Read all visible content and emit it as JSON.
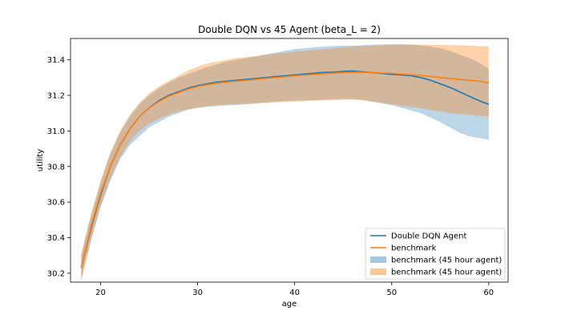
{
  "chart_data": {
    "type": "line",
    "title": "Double DQN vs 45 Agent (beta_L = 2)",
    "xlabel": "age",
    "ylabel": "utility",
    "xlim": [
      16.9,
      62.0
    ],
    "ylim": [
      30.15,
      31.52
    ],
    "xticks": [
      20,
      30,
      40,
      50,
      60
    ],
    "yticks": [
      30.2,
      30.4,
      30.6,
      30.8,
      31.0,
      31.2,
      31.4
    ],
    "grid": false,
    "legend_position": "lower right",
    "x": [
      18,
      19,
      20,
      21,
      22,
      23,
      24,
      25,
      26,
      27,
      28,
      29,
      30,
      31,
      32,
      33,
      34,
      35,
      36,
      37,
      38,
      39,
      40,
      41,
      42,
      43,
      44,
      45,
      46,
      47,
      48,
      49,
      50,
      51,
      52,
      53,
      54,
      55,
      56,
      57,
      58,
      59,
      60
    ],
    "series": [
      {
        "name": "Double DQN Agent",
        "kind": "line",
        "color": "#1f77b4",
        "values": [
          30.23,
          30.45,
          30.64,
          30.8,
          30.92,
          31.01,
          31.08,
          31.13,
          31.17,
          31.2,
          31.22,
          31.24,
          31.255,
          31.265,
          31.275,
          31.28,
          31.285,
          31.29,
          31.295,
          31.3,
          31.305,
          31.31,
          31.315,
          31.32,
          31.325,
          31.33,
          31.33,
          31.335,
          31.337,
          31.333,
          31.328,
          31.323,
          31.318,
          31.315,
          31.31,
          31.3,
          31.285,
          31.265,
          31.245,
          31.22,
          31.195,
          31.17,
          31.15
        ]
      },
      {
        "name": "benchmark",
        "kind": "line",
        "color": "#ff7f0e",
        "values": [
          30.23,
          30.46,
          30.65,
          30.8,
          30.92,
          31.01,
          31.08,
          31.13,
          31.165,
          31.195,
          31.215,
          31.235,
          31.25,
          31.26,
          31.268,
          31.275,
          31.28,
          31.285,
          31.29,
          31.295,
          31.3,
          31.305,
          31.31,
          31.314,
          31.318,
          31.322,
          31.325,
          31.328,
          31.33,
          31.33,
          31.328,
          31.326,
          31.324,
          31.32,
          31.316,
          31.312,
          31.307,
          31.3,
          31.295,
          31.29,
          31.285,
          31.28,
          31.27
        ]
      },
      {
        "name": "benchmark (45 hour agent)",
        "kind": "band",
        "color": "#1f77b4",
        "opacity": 0.3,
        "lower": [
          30.16,
          30.38,
          30.57,
          30.72,
          30.84,
          30.92,
          30.97,
          31.02,
          31.05,
          31.08,
          31.1,
          31.12,
          31.13,
          31.135,
          31.14,
          31.143,
          31.146,
          31.15,
          31.155,
          31.16,
          31.165,
          31.168,
          31.17,
          31.172,
          31.174,
          31.176,
          31.178,
          31.18,
          31.18,
          31.175,
          31.165,
          31.155,
          31.145,
          31.13,
          31.115,
          31.1,
          31.075,
          31.05,
          31.02,
          30.99,
          30.97,
          30.96,
          30.95
        ],
        "upper": [
          30.3,
          30.52,
          30.71,
          30.87,
          30.99,
          31.08,
          31.15,
          31.2,
          31.24,
          31.27,
          31.3,
          31.32,
          31.34,
          31.36,
          31.375,
          31.39,
          31.4,
          31.41,
          31.42,
          31.43,
          31.44,
          31.45,
          31.46,
          31.465,
          31.47,
          31.475,
          31.478,
          31.48,
          31.48,
          31.482,
          31.485,
          31.487,
          31.488,
          31.488,
          31.485,
          31.48,
          31.475,
          31.465,
          31.45,
          31.43,
          31.41,
          31.385,
          31.35
        ]
      },
      {
        "name": "benchmark (45 hour agent)",
        "kind": "band",
        "color": "#ff7f0e",
        "opacity": 0.35,
        "lower": [
          30.16,
          30.39,
          30.58,
          30.73,
          30.85,
          30.94,
          31.0,
          31.04,
          31.07,
          31.09,
          31.11,
          31.12,
          31.13,
          31.14,
          31.145,
          31.148,
          31.15,
          31.152,
          31.155,
          31.158,
          31.16,
          31.163,
          31.165,
          31.167,
          31.17,
          31.172,
          31.173,
          31.175,
          31.175,
          31.172,
          31.165,
          31.158,
          31.15,
          31.142,
          31.135,
          31.127,
          31.118,
          31.11,
          31.1,
          31.095,
          31.09,
          31.085,
          31.08
        ],
        "upper": [
          30.31,
          30.53,
          30.72,
          30.88,
          31.0,
          31.09,
          31.16,
          31.21,
          31.25,
          31.28,
          31.31,
          31.34,
          31.36,
          31.38,
          31.39,
          31.4,
          31.41,
          31.415,
          31.42,
          31.43,
          31.435,
          31.44,
          31.445,
          31.45,
          31.455,
          31.46,
          31.465,
          31.47,
          31.475,
          31.478,
          31.48,
          31.482,
          31.484,
          31.485,
          31.486,
          31.486,
          31.485,
          31.484,
          31.483,
          31.482,
          31.48,
          31.478,
          31.475
        ]
      }
    ]
  }
}
